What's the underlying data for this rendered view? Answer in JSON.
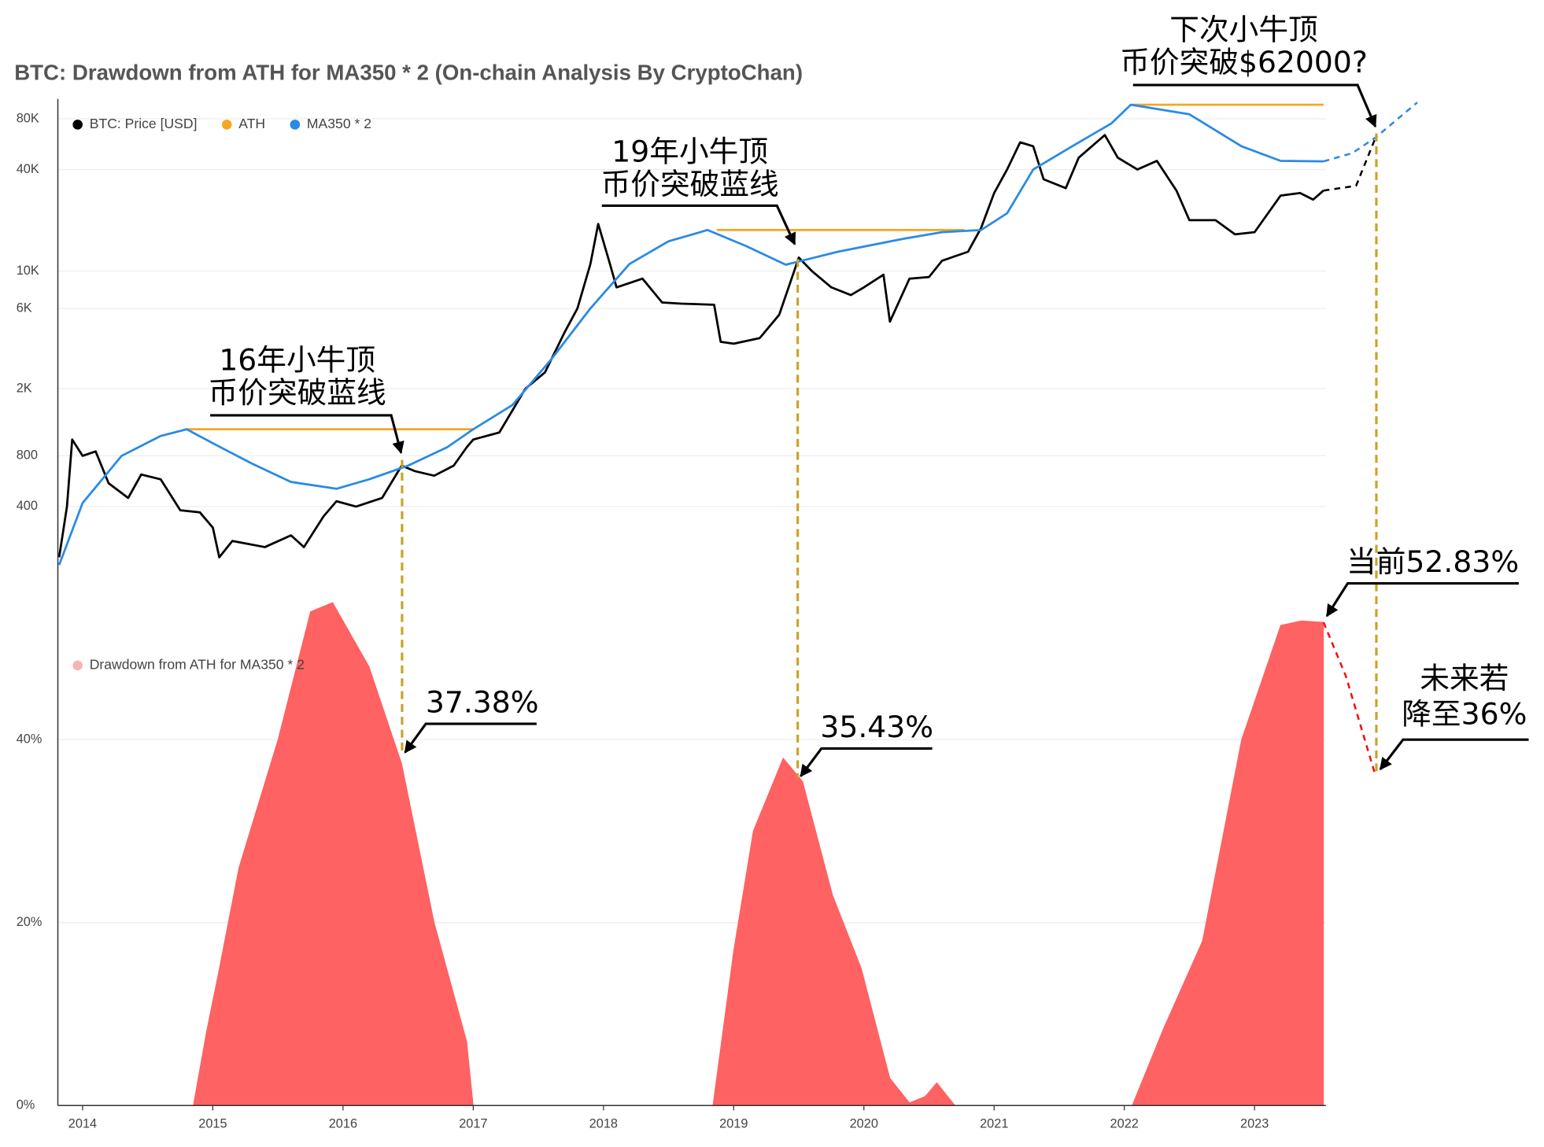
{
  "chart_data": [
    {
      "type": "line",
      "title": "BTC: Drawdown from ATH for MA350 * 2 (On-chain Analysis By CryptoChan)",
      "log_scale": true,
      "grid": true,
      "xlim": [
        2013.81,
        2024.3
      ],
      "ylim": [
        140,
        105000
      ],
      "yticks": [
        400,
        800,
        {
          "value": 2000,
          "label": "2K"
        },
        {
          "value": 6000,
          "label": "6K"
        },
        {
          "value": 10000,
          "label": "10K"
        },
        {
          "value": 40000,
          "label": "40K"
        },
        {
          "value": 80000,
          "label": "80K"
        }
      ],
      "series": [
        {
          "name": "BTC: Price [USD]",
          "color": "#000000",
          "x": [
            2013.82,
            2013.88,
            2013.92,
            2014.0,
            2014.1,
            2014.2,
            2014.35,
            2014.45,
            2014.6,
            2014.75,
            2014.9,
            2015.0,
            2015.05,
            2015.15,
            2015.4,
            2015.6,
            2015.7,
            2015.85,
            2015.95,
            2016.1,
            2016.3,
            2016.45,
            2016.55,
            2016.7,
            2016.85,
            2016.95,
            2017.0,
            2017.2,
            2017.4,
            2017.55,
            2017.7,
            2017.8,
            2017.9,
            2017.96,
            2018.05,
            2018.1,
            2018.3,
            2018.45,
            2018.6,
            2018.85,
            2018.9,
            2019.0,
            2019.2,
            2019.35,
            2019.5,
            2019.6,
            2019.75,
            2019.9,
            2020.0,
            2020.15,
            2020.2,
            2020.35,
            2020.5,
            2020.6,
            2020.8,
            2020.9,
            2021.0,
            2021.1,
            2021.2,
            2021.3,
            2021.38,
            2021.55,
            2021.65,
            2021.85,
            2021.95,
            2022.1,
            2022.25,
            2022.4,
            2022.5,
            2022.7,
            2022.85,
            2023.0,
            2023.2,
            2023.35,
            2023.45,
            2023.53
          ],
          "values": [
            200,
            400,
            1000,
            800,
            850,
            550,
            450,
            620,
            580,
            380,
            370,
            300,
            200,
            250,
            230,
            270,
            230,
            350,
            430,
            400,
            450,
            700,
            650,
            610,
            700,
            900,
            1000,
            1100,
            2000,
            2500,
            4300,
            6000,
            11000,
            19000,
            11000,
            8000,
            9000,
            6500,
            6400,
            6300,
            3800,
            3700,
            4000,
            5500,
            12000,
            10000,
            8000,
            7200,
            8000,
            9500,
            5000,
            9000,
            9200,
            11500,
            13000,
            18000,
            29000,
            40000,
            58000,
            55000,
            35000,
            31000,
            47000,
            64000,
            47000,
            40000,
            45000,
            30000,
            20000,
            20000,
            16500,
            17000,
            28000,
            29000,
            26500,
            30000
          ]
        },
        {
          "name": "ATH",
          "color": "#f5a623",
          "x": [
            2014.8,
            2017.0,
            null,
            2018.87,
            2020.77,
            null,
            2022.06,
            2023.53
          ],
          "values": [
            1150,
            1150,
            null,
            17500,
            17500,
            null,
            97000,
            97000
          ]
        },
        {
          "name": "MA350 * 2",
          "color": "#2a8ae6",
          "x": [
            2013.82,
            2014.0,
            2014.3,
            2014.6,
            2014.8,
            2015.0,
            2015.3,
            2015.6,
            2015.95,
            2016.2,
            2016.5,
            2016.8,
            2017.0,
            2017.3,
            2017.6,
            2017.9,
            2018.2,
            2018.5,
            2018.8,
            2019.1,
            2019.4,
            2019.8,
            2020.3,
            2020.6,
            2020.9,
            2021.1,
            2021.3,
            2021.6,
            2021.9,
            2022.05,
            2022.5,
            2022.9,
            2023.2,
            2023.53
          ],
          "values": [
            180,
            420,
            800,
            1050,
            1150,
            950,
            720,
            560,
            510,
            580,
            700,
            900,
            1150,
            1600,
            3000,
            6000,
            11000,
            15000,
            17500,
            14000,
            10900,
            13000,
            15500,
            17000,
            17500,
            22000,
            40000,
            55000,
            75000,
            97000,
            85000,
            55000,
            45000,
            44700
          ]
        },
        {
          "color": "#2a8ae6",
          "dashed": true,
          "x": [
            2023.53,
            2023.75,
            2023.93,
            2024.25
          ],
          "values": [
            44700,
            50000,
            62000,
            100000
          ]
        },
        {
          "color": "#000000",
          "dashed": true,
          "x": [
            2023.53,
            2023.78,
            2023.93
          ],
          "values": [
            30000,
            32000,
            62000
          ]
        }
      ],
      "annotations": [
        "16年小牛顶",
        "币价突破蓝线",
        "19年小牛顶",
        "币价突破蓝线",
        "下次小牛顶",
        "币价突破$62000?",
        "37.38%",
        "35.43%",
        "当前52.83%",
        "未来若",
        "降至36%"
      ]
    },
    {
      "type": "area",
      "grid": true,
      "xlim": [
        2013.81,
        2024.3
      ],
      "ylim": [
        0,
        56
      ],
      "xticks": [
        2014,
        2015,
        2016,
        2017,
        2018,
        2019,
        2020,
        2021,
        2022,
        2023
      ],
      "yticks": [
        {
          "value": 0,
          "label": "0%"
        },
        {
          "value": 20,
          "label": "20%"
        },
        {
          "value": 40,
          "label": "40%"
        }
      ],
      "series": [
        {
          "name": "Drawdown from ATH for MA350 * 2",
          "color": "#ff5a5a",
          "x": [
            2014.85,
            2014.95,
            2015.05,
            2015.2,
            2015.35,
            2015.5,
            2015.75,
            2015.92,
            2016.2,
            2016.45,
            2016.7,
            2016.95,
            2017.0,
            2018.84,
            2019.0,
            2019.15,
            2019.38,
            2019.53,
            2019.76,
            2019.98,
            2020.2,
            2020.35,
            2020.47,
            2020.56,
            2020.7,
            2022.06,
            2022.3,
            2022.6,
            2022.9,
            2023.2,
            2023.36,
            2023.53
          ],
          "values": [
            0,
            8,
            15,
            26,
            33,
            40,
            54,
            55,
            48,
            37.38,
            20,
            7,
            0,
            0,
            17,
            30,
            38,
            35.43,
            23,
            15,
            3,
            0.3,
            1,
            2.5,
            0,
            0,
            8.4,
            18,
            40,
            52.5,
            53,
            52.83
          ]
        },
        {
          "color": "#ee1111",
          "dashed": true,
          "x": [
            2023.53,
            2023.7,
            2023.93
          ],
          "values": [
            52.83,
            47,
            36
          ]
        }
      ]
    }
  ]
}
